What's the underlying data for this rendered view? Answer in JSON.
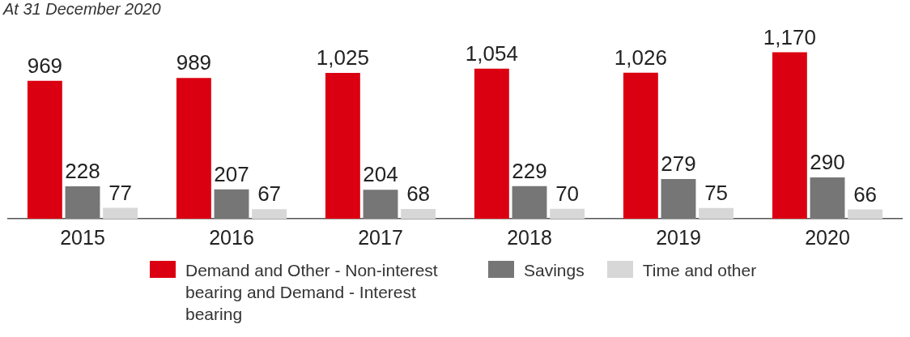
{
  "chart_data": {
    "type": "bar",
    "subtitle": "At 31 December 2020",
    "categories": [
      "2015",
      "2016",
      "2017",
      "2018",
      "2019",
      "2020"
    ],
    "series": [
      {
        "name": "Demand and Other - Non-interest bearing and Demand - Interest bearing",
        "color": "#db0011",
        "values": [
          969,
          989,
          1025,
          1054,
          1026,
          1170
        ],
        "value_labels": [
          "969",
          "989",
          "1,025",
          "1,054",
          "1,026",
          "1,170"
        ]
      },
      {
        "name": "Savings",
        "color": "#767676",
        "values": [
          228,
          207,
          204,
          229,
          279,
          290
        ],
        "value_labels": [
          "228",
          "207",
          "204",
          "229",
          "279",
          "290"
        ]
      },
      {
        "name": "Time and other",
        "color": "#d7d7d7",
        "values": [
          77,
          67,
          68,
          70,
          75,
          66
        ],
        "value_labels": [
          "77",
          "67",
          "68",
          "70",
          "75",
          "66"
        ]
      }
    ],
    "legend": "bottom",
    "grid": false
  }
}
